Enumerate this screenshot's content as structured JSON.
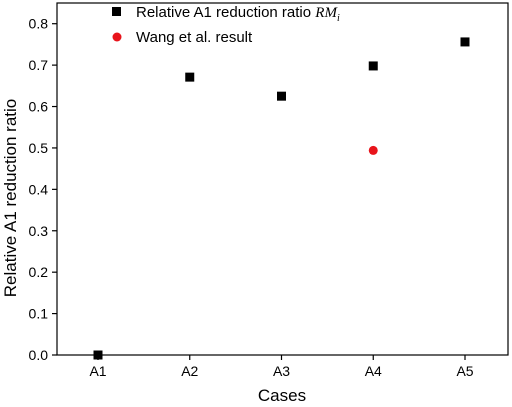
{
  "chart_data": {
    "type": "scatter",
    "title": "",
    "xlabel": "Cases",
    "ylabel": "Relative A1 reduction ratio",
    "categories": [
      "A1",
      "A2",
      "A3",
      "A4",
      "A5"
    ],
    "ylim": [
      0.0,
      0.85
    ],
    "yticks": [
      "0.0",
      "0.1",
      "0.2",
      "0.3",
      "0.4",
      "0.5",
      "0.6",
      "0.7",
      "0.8"
    ],
    "grid": false,
    "legend_position": "top-center",
    "series": [
      {
        "name_text": "Relative A1 reduction ratio ",
        "name_math": "RM",
        "name_sub": "i",
        "marker": "square",
        "color": "#000000",
        "x": [
          "A1",
          "A2",
          "A3",
          "A4",
          "A5"
        ],
        "values": [
          0.0,
          0.671,
          0.625,
          0.698,
          0.756
        ]
      },
      {
        "name": "Wang et al. result",
        "marker": "circle",
        "color": "#e8141b",
        "x": [
          "A4"
        ],
        "values": [
          0.494
        ]
      }
    ]
  }
}
